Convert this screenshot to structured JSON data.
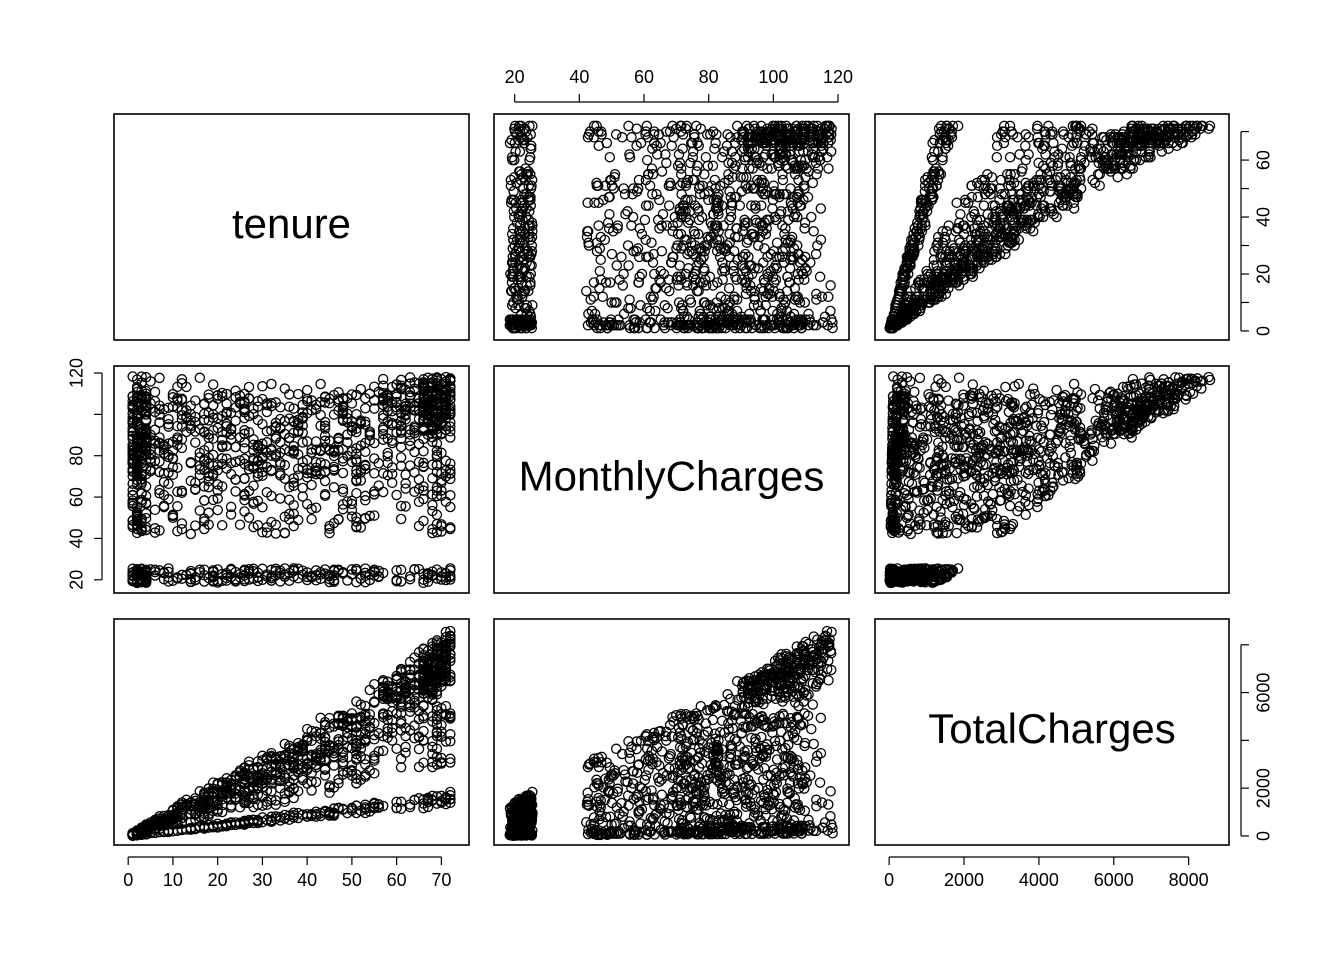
{
  "chart_data": {
    "type": "scatter",
    "kind": "scatterplot-matrix",
    "variables": [
      {
        "name": "tenure",
        "range": [
          0,
          73
        ],
        "ticks": [
          0,
          10,
          20,
          30,
          40,
          50,
          60,
          70
        ]
      },
      {
        "name": "MonthlyCharges",
        "range": [
          18,
          119
        ],
        "ticks": [
          20,
          40,
          60,
          80,
          100,
          120
        ]
      },
      {
        "name": "TotalCharges",
        "range": [
          0,
          8700
        ],
        "ticks": [
          0,
          2000,
          4000,
          6000,
          8000
        ],
        "right_axis_ticks": [
          0,
          2000,
          4000,
          6000,
          8000
        ],
        "right_axis_labels": [
          "0",
          "2000",
          "",
          "6000",
          ""
        ]
      }
    ],
    "axes": {
      "top": {
        "variable": "MonthlyCharges",
        "ticks": [
          20,
          40,
          60,
          80,
          100,
          120
        ]
      },
      "left": {
        "variable": "MonthlyCharges",
        "ticks": [
          20,
          40,
          60,
          80,
          100,
          120
        ],
        "labels": [
          "20",
          "40",
          "60",
          "80",
          "",
          "120"
        ]
      },
      "right_top": {
        "variable": "tenure",
        "ticks": [
          0,
          10,
          20,
          30,
          40,
          50,
          60,
          70
        ],
        "labels": [
          "0",
          "",
          "20",
          "",
          "40",
          "",
          "60",
          ""
        ]
      },
      "right_bottom": {
        "variable": "TotalCharges",
        "ticks": [
          0,
          2000,
          4000,
          6000,
          8000
        ],
        "labels": [
          "0",
          "2000",
          "",
          "6000",
          ""
        ]
      },
      "bottom_left": {
        "variable": "tenure",
        "ticks": [
          0,
          10,
          20,
          30,
          40,
          50,
          60,
          70
        ]
      },
      "bottom_right": {
        "variable": "TotalCharges",
        "ticks": [
          0,
          2000,
          4000,
          6000,
          8000
        ]
      }
    },
    "marker": "open-circle",
    "grid": false,
    "legend": "none",
    "relationships": {
      "tenure_vs_monthly": "points fill MonthlyCharges 18-119 across all tenure 0-72",
      "tenure_vs_total": "TotalCharges approximately tenure times MonthlyCharges, fan shape",
      "monthly_vs_total": "TotalCharges bounded above by about 72 times MonthlyCharges"
    }
  }
}
